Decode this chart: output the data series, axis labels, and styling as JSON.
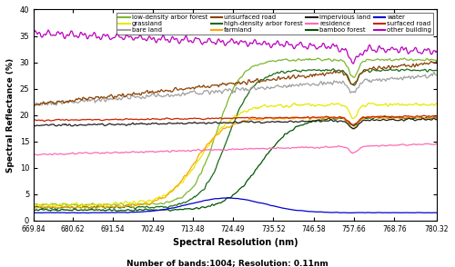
{
  "xlabel": "Spectral Resolution (nm)",
  "ylabel": "Spectral Reflectance (%)",
  "xlabel2": "Number of bands:1004; Resolution: 0.11nm",
  "x_ticks": [
    669.84,
    680.62,
    691.54,
    702.49,
    713.48,
    724.49,
    735.52,
    746.58,
    757.66,
    768.76,
    780.32
  ],
  "ylim": [
    0,
    40
  ],
  "xlim": [
    669.84,
    780.32
  ],
  "series_order": [
    "low-density arbor forest",
    "high-density arbor forest",
    "bamboo forest",
    "grassland",
    "farmland",
    "water",
    "bare land",
    "impervious land",
    "surfaced road",
    "unsurfaced road",
    "residence",
    "other building"
  ],
  "series_colors": {
    "low-density arbor forest": "#7db72f",
    "high-density arbor forest": "#1a6b1a",
    "bamboo forest": "#005500",
    "grassland": "#e8e800",
    "farmland": "#ffa500",
    "water": "#0000cd",
    "bare land": "#a0a0a0",
    "impervious land": "#222222",
    "surfaced road": "#cc2200",
    "unsurfaced road": "#8b4000",
    "residence": "#ff69b4",
    "other building": "#bb00bb"
  }
}
